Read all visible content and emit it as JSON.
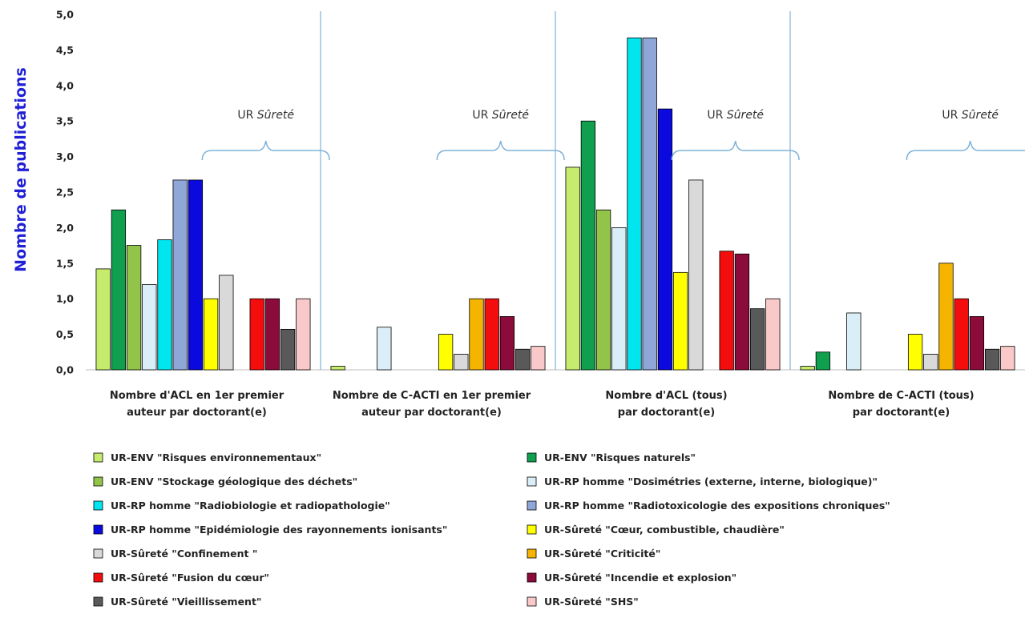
{
  "chart_data": {
    "type": "bar",
    "ylabel": "Nombre de publications",
    "ylim": [
      0,
      5
    ],
    "yticks": [
      "0,0",
      "0,5",
      "1,0",
      "1,5",
      "2,0",
      "2,5",
      "3,0",
      "3,5",
      "4,0",
      "4,5",
      "5,0"
    ],
    "grid": false,
    "legend_position": "bottom",
    "categories": [
      [
        "Nombre d'ACL en 1er premier",
        "auteur par doctorant(e)"
      ],
      [
        "Nombre de C-ACTI en 1er premier",
        "auteur par doctorant(e)"
      ],
      [
        "Nombre d'ACL (tous)",
        "par doctorant(e)"
      ],
      [
        "Nombre de C-ACTI (tous)",
        "par doctorant(e)"
      ]
    ],
    "annotation_text": "UR ",
    "annotation_emphasis": "Sûreté",
    "series": [
      {
        "name": "UR-ENV \"Risques environnementaux\"",
        "color": "#c6ec6e",
        "values": [
          1.42,
          0.05,
          2.85,
          0.05
        ]
      },
      {
        "name": "UR-ENV \"Risques naturels\"",
        "color": "#0f9f4f",
        "values": [
          2.25,
          0,
          3.5,
          0.25
        ]
      },
      {
        "name": "UR-ENV \"Stockage géologique des déchets\"",
        "color": "#93c44a",
        "values": [
          1.75,
          0,
          2.25,
          0
        ]
      },
      {
        "name": "UR-RP homme \"Dosimétries (externe, interne, biologique)\"",
        "color": "#daeef8",
        "values": [
          1.2,
          0.6,
          2.0,
          0.8
        ]
      },
      {
        "name": "UR-RP homme \"Radiobiologie et radiopathologie\"",
        "color": "#00e5ee",
        "values": [
          1.83,
          0,
          4.67,
          0
        ]
      },
      {
        "name": "UR-RP homme \"Radiotoxicologie des expositions chroniques\"",
        "color": "#8fa7d8",
        "values": [
          2.67,
          0,
          4.67,
          0
        ]
      },
      {
        "name": "UR-RP homme \"Epidémiologie des rayonnements ionisants\"",
        "color": "#0a0adf",
        "values": [
          2.67,
          0,
          3.67,
          0
        ]
      },
      {
        "name": "UR-Sûreté \"Cœur, combustible, chaudière\"",
        "color": "#ffff00",
        "values": [
          1.0,
          0.5,
          1.37,
          0.5
        ]
      },
      {
        "name": "UR-Sûreté \"Confinement \"",
        "color": "#d9d9d9",
        "values": [
          1.33,
          0.22,
          2.67,
          0.22
        ]
      },
      {
        "name": "UR-Sûreté \"Criticité\"",
        "color": "#f5b400",
        "values": [
          0,
          1.0,
          0,
          1.5
        ]
      },
      {
        "name": "UR-Sûreté \"Fusion du cœur\"",
        "color": "#f40d0d",
        "values": [
          1.0,
          1.0,
          1.67,
          1.0
        ]
      },
      {
        "name": "UR-Sûreté \"Incendie et explosion\"",
        "color": "#8b0b3a",
        "values": [
          1.0,
          0.75,
          1.63,
          0.75
        ]
      },
      {
        "name": "UR-Sûreté \"Vieillissement\"",
        "color": "#595959",
        "values": [
          0.57,
          0.29,
          0.86,
          0.29
        ]
      },
      {
        "name": "UR-Sûreté \"SHS\"",
        "color": "#f9c9c9",
        "values": [
          1.0,
          0.33,
          1.0,
          0.33
        ]
      }
    ]
  }
}
